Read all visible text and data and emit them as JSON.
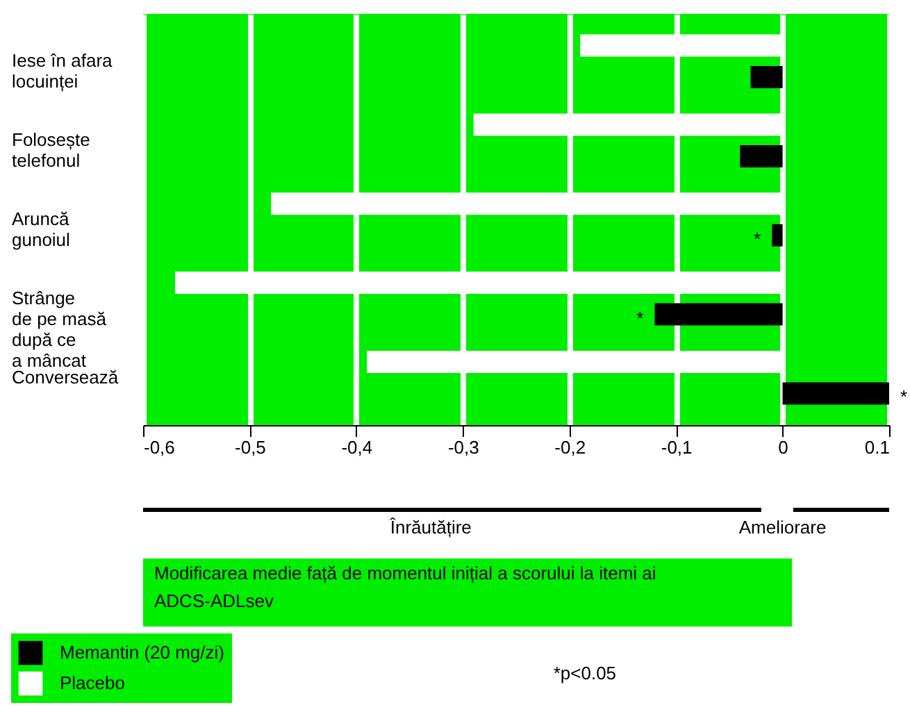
{
  "chart_data": {
    "type": "bar",
    "orientation": "horizontal",
    "categories": [
      "Iese în afara\nlocuinței",
      "Folosește\ntelefonul",
      "Aruncă\ngunoiul",
      "Strânge\nde pe masă\ndupă ce\na mâncat",
      "Conversează"
    ],
    "series": [
      {
        "name": "Memantin (20 mg/zi)",
        "color": "#000000",
        "values": [
          -0.03,
          -0.04,
          -0.01,
          -0.12,
          0.1
        ]
      },
      {
        "name": "Placebo",
        "color": "#ffffff",
        "values": [
          -0.19,
          -0.29,
          -0.48,
          -0.57,
          -0.39
        ]
      }
    ],
    "xlim": [
      -0.6,
      0.1
    ],
    "xticks": [
      {
        "value": -0.6,
        "label": "-0,6"
      },
      {
        "value": -0.5,
        "label": "-0,5"
      },
      {
        "value": -0.4,
        "label": "-0,4"
      },
      {
        "value": -0.3,
        "label": "-0,3"
      },
      {
        "value": -0.2,
        "label": "-0,2"
      },
      {
        "value": -0.1,
        "label": "-0,1"
      },
      0,
      {
        "value": 0.1,
        "label": "0.1"
      }
    ],
    "grid": "x",
    "legend": "bottom left",
    "annotations": [
      {
        "text": "*",
        "x": -0.01,
        "y": "Aruncă\ngunoiul"
      },
      {
        "text": "*",
        "x": -0.12,
        "y": "Strânge\nde pe masă\ndupă ce\na mâncat"
      },
      {
        "text": "*",
        "x": 0.1,
        "y": "Conversează"
      },
      "Înrăutățire",
      "Ameliorare",
      "Modificarea medie față de momentul inițial a scorului la itemi ai\nADCS-ADLsev",
      "*p<0.05"
    ]
  }
}
